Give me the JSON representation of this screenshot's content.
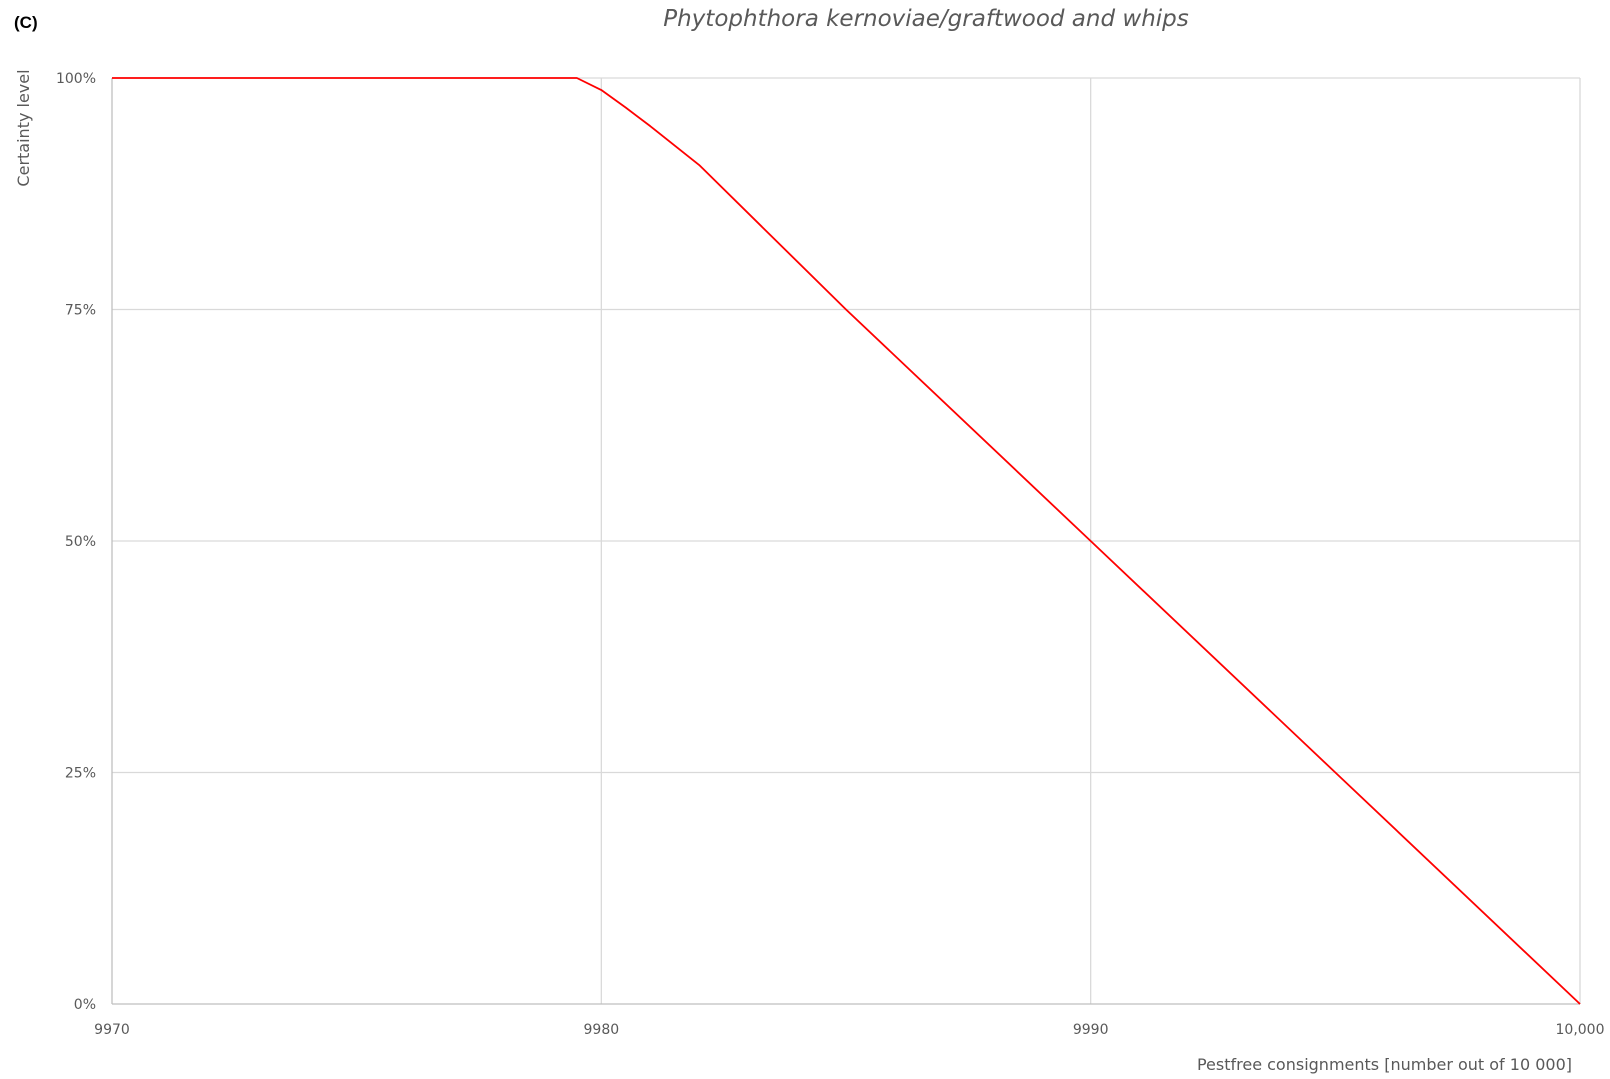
{
  "figure": {
    "panel_label": "(C)"
  },
  "chart_data": {
    "type": "line",
    "title": "Phytophthora kernoviae/graftwood and whips",
    "xlabel": "Pestfree consignments [number out of 10 000]",
    "ylabel": "Certainty level",
    "xlim": [
      9970,
      10000
    ],
    "ylim": [
      0,
      1
    ],
    "x_ticks": [
      {
        "value": 9970,
        "label": "9970"
      },
      {
        "value": 9980,
        "label": "9980"
      },
      {
        "value": 9990,
        "label": "9990"
      },
      {
        "value": 10000,
        "label": "10,000"
      }
    ],
    "y_ticks": [
      {
        "value": 0,
        "label": "0%"
      },
      {
        "value": 0.25,
        "label": "25%"
      },
      {
        "value": 0.5,
        "label": "50%"
      },
      {
        "value": 0.75,
        "label": "75%"
      },
      {
        "value": 1,
        "label": "100%"
      }
    ],
    "grid": true,
    "series": [
      {
        "color": "#ff0000",
        "points": [
          {
            "x": 9970,
            "y": 1.0
          },
          {
            "x": 9979.5,
            "y": 1.0
          },
          {
            "x": 9980,
            "y": 0.987
          },
          {
            "x": 9980.5,
            "y": 0.968
          },
          {
            "x": 9981,
            "y": 0.948
          },
          {
            "x": 9982,
            "y": 0.906
          },
          {
            "x": 9985,
            "y": 0.75
          },
          {
            "x": 9990,
            "y": 0.5
          },
          {
            "x": 9995,
            "y": 0.25
          },
          {
            "x": 10000,
            "y": 0.0
          }
        ]
      }
    ]
  }
}
